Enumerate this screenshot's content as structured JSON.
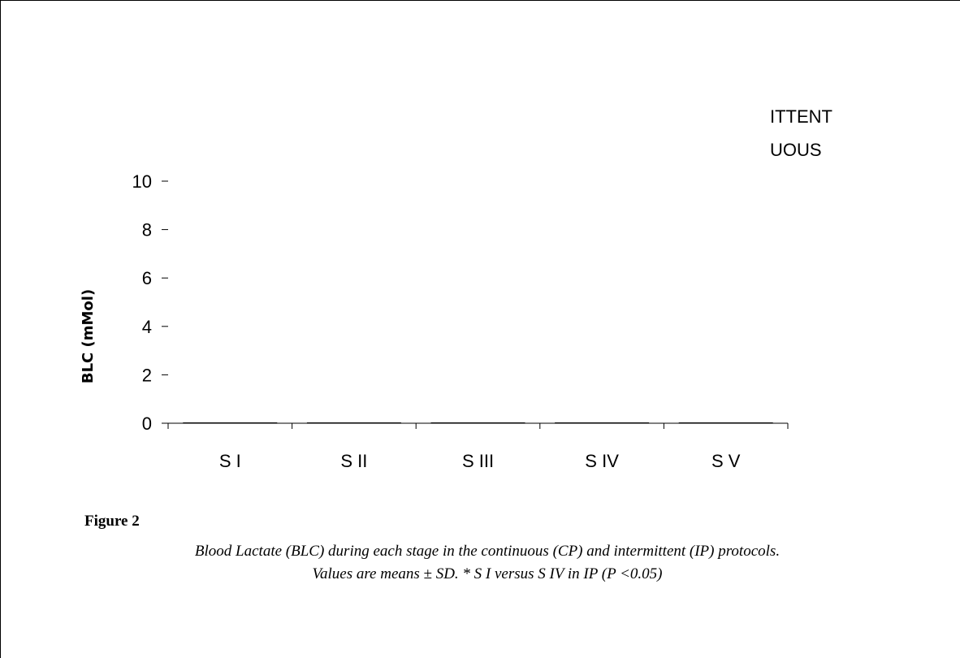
{
  "chart_data": {
    "type": "bar",
    "categories": [
      "S I",
      "S II",
      "S III",
      "S IV",
      "S V"
    ],
    "series": [
      {
        "values": [
          0,
          0,
          0,
          0,
          0
        ]
      }
    ],
    "ylabel": "BLC (mMol)",
    "ylim": [
      0,
      10
    ],
    "yticks": [
      0,
      2,
      4,
      6,
      8,
      10
    ],
    "grid": false,
    "legend": {
      "placement": "top-right",
      "entries": [
        "ITTENT",
        "UOUS"
      ]
    }
  },
  "caption": {
    "label": "Figure 2",
    "line1": "Blood Lactate (BLC) during each stage in the continuous (CP) and intermittent (IP) protocols.",
    "line2": "Values are means ± SD. * S I versus S IV in IP (P <0.05)"
  }
}
